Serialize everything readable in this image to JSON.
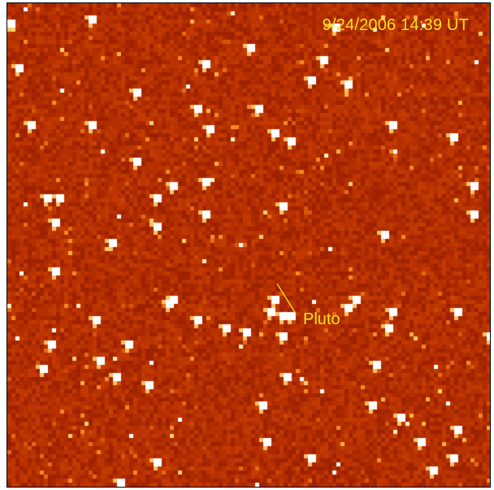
{
  "image": {
    "timestamp": "9/24/2006 14:39 UT",
    "target_label": "Pluto",
    "colors": {
      "background": "#b83000",
      "label": "#f5e419",
      "frame": "#000000"
    },
    "colormap": "red-orange-yellow-white heat"
  }
}
